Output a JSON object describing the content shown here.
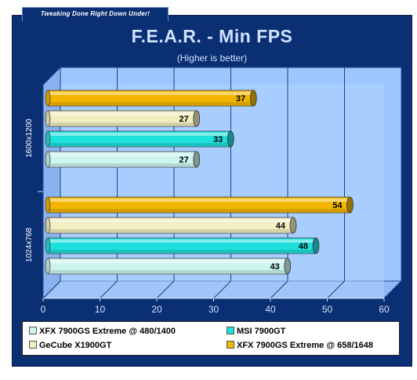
{
  "banner": "Tweaking Done Right Down Under!",
  "chart_data": {
    "type": "bar",
    "orientation": "horizontal",
    "title": "F.E.A.R. - Min FPS",
    "subtitle": "(Higher is better)",
    "categories": [
      "1600x1200",
      "1024x768"
    ],
    "xlim": [
      0,
      60
    ],
    "xticks": [
      "0",
      "10",
      "20",
      "30",
      "40",
      "50",
      "60"
    ],
    "grid": true,
    "legend_position": "bottom",
    "series": [
      {
        "name": "XFX 7900GS Extreme @ 480/1400",
        "color": "#ccf5ee",
        "values": [
          27,
          43
        ]
      },
      {
        "name": "MSI 7900GT",
        "color": "#1ee0dc",
        "values": [
          33,
          48
        ]
      },
      {
        "name": "GeCube X1900GT",
        "color": "#f2eec0",
        "values": [
          27,
          44
        ]
      },
      {
        "name": "XFX 7900GS Extreme @ 658/1648",
        "color": "#f3b600",
        "values": [
          37,
          54
        ]
      }
    ]
  }
}
